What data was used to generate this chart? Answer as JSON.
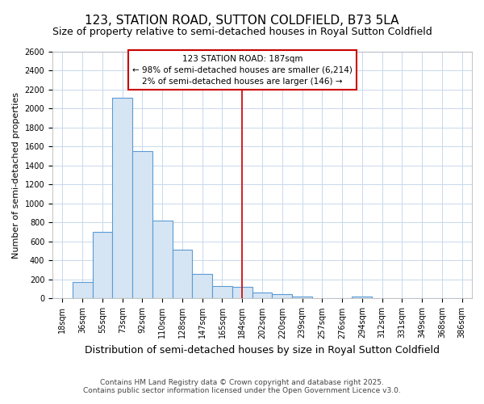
{
  "title": "123, STATION ROAD, SUTTON COLDFIELD, B73 5LA",
  "subtitle": "Size of property relative to semi-detached houses in Royal Sutton Coldfield",
  "xlabel": "Distribution of semi-detached houses by size in Royal Sutton Coldfield",
  "ylabel": "Number of semi-detached properties",
  "categories": [
    "18sqm",
    "36sqm",
    "55sqm",
    "73sqm",
    "92sqm",
    "110sqm",
    "128sqm",
    "147sqm",
    "165sqm",
    "184sqm",
    "202sqm",
    "220sqm",
    "239sqm",
    "257sqm",
    "276sqm",
    "294sqm",
    "312sqm",
    "331sqm",
    "349sqm",
    "368sqm",
    "386sqm"
  ],
  "values": [
    0,
    175,
    700,
    2115,
    1550,
    825,
    515,
    255,
    130,
    120,
    65,
    50,
    20,
    5,
    0,
    20,
    0,
    0,
    0,
    0,
    0
  ],
  "bar_color": "#d6e5f3",
  "bar_edge_color": "#5b9bd5",
  "vline_x_index": 9,
  "vline_color": "#cc0000",
  "annotation_title": "123 STATION ROAD: 187sqm",
  "annotation_line1": "← 98% of semi-detached houses are smaller (6,214)",
  "annotation_line2": "2% of semi-detached houses are larger (146) →",
  "annotation_box_color": "#cc0000",
  "ylim": [
    0,
    2600
  ],
  "yticks": [
    0,
    200,
    400,
    600,
    800,
    1000,
    1200,
    1400,
    1600,
    1800,
    2000,
    2200,
    2400,
    2600
  ],
  "footer_line1": "Contains HM Land Registry data © Crown copyright and database right 2025.",
  "footer_line2": "Contains public sector information licensed under the Open Government Licence v3.0.",
  "bg_color": "#ffffff",
  "plot_bg_color": "#ffffff",
  "grid_color": "#c8d8ec",
  "title_fontsize": 11,
  "subtitle_fontsize": 9,
  "xlabel_fontsize": 9,
  "ylabel_fontsize": 8,
  "tick_fontsize": 7,
  "annotation_fontsize": 7.5,
  "footer_fontsize": 6.5,
  "bar_width": 1.0
}
